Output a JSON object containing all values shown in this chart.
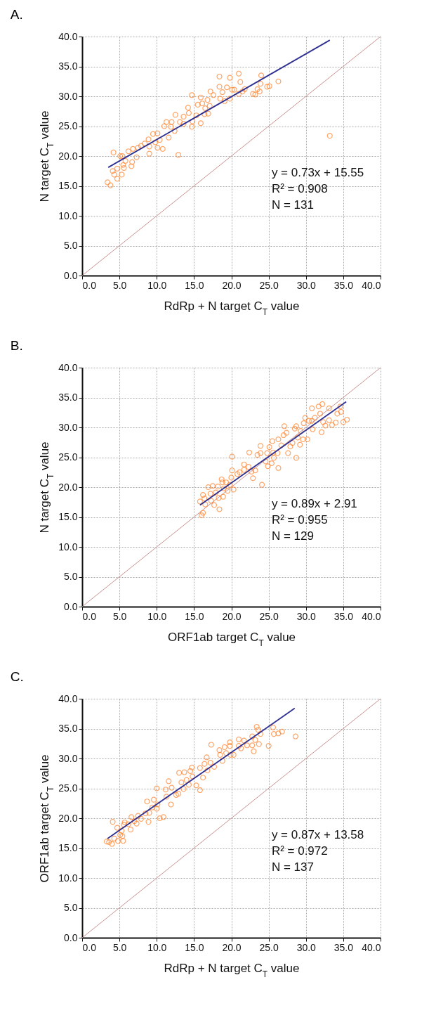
{
  "chart_data": [
    {
      "type": "scatter",
      "title": "A.",
      "xlabel": "RdRp + N target C$_{T}$ value",
      "ylabel": "N target C$_{T}$ value",
      "xlim": [
        0,
        40
      ],
      "ylim": [
        0,
        40
      ],
      "xticks": [
        {
          "value": 0,
          "label": "0.0"
        },
        {
          "value": 5,
          "label": "5.0"
        },
        {
          "value": 10,
          "label": "10.0"
        },
        {
          "value": 15,
          "label": "15.0"
        },
        {
          "value": 20,
          "label": "20.0"
        },
        {
          "value": 25,
          "label": "25.0"
        },
        {
          "value": 30,
          "label": "30.0"
        },
        {
          "value": 35,
          "label": "35.0"
        },
        {
          "value": 40,
          "label": "40.0"
        }
      ],
      "yticks": [
        {
          "value": 0,
          "label": "0.0"
        },
        {
          "value": 5,
          "label": "5.0"
        },
        {
          "value": 10,
          "label": "10.0"
        },
        {
          "value": 15,
          "label": "15.0"
        },
        {
          "value": 20,
          "label": "20.0"
        },
        {
          "value": 25,
          "label": "25.0"
        },
        {
          "value": 30,
          "label": "30.0"
        },
        {
          "value": 35,
          "label": "35.0"
        },
        {
          "value": 40,
          "label": "40.0"
        }
      ],
      "grid": true,
      "annotations": [
        "y = 0.73x + 15.55",
        "R² = 0.908",
        "N = 131"
      ],
      "series": [
        {
          "type": "line",
          "color": "#c89090",
          "x": [
            0,
            40
          ],
          "values": [
            0,
            40
          ]
        },
        {
          "type": "scatter",
          "color": "#ff7f27",
          "marker": "circle",
          "x": [
            3.4,
            3.8,
            4.2,
            4.1,
            4.3,
            4.7,
            4.7,
            5.3,
            5.1,
            5.4,
            5.5,
            5.6,
            5.8,
            6.2,
            6.6,
            6.7,
            6.8,
            7.3,
            7.5,
            7.9,
            8.4,
            8.9,
            9.0,
            9.0,
            9.5,
            9.8,
            10.1,
            10.1,
            10.4,
            10.8,
            11.0,
            11.3,
            11.6,
            11.9,
            12.0,
            12.4,
            12.5,
            12.9,
            13.1,
            13.6,
            13.6,
            14.2,
            14.3,
            14.7,
            14.7,
            14.8,
            15.3,
            15.5,
            15.9,
            15.9,
            16.1,
            16.4,
            16.5,
            16.8,
            16.9,
            17.1,
            17.2,
            17.6,
            18.4,
            18.4,
            18.5,
            18.8,
            19.1,
            19.4,
            19.8,
            19.8,
            20.1,
            20.4,
            21.0,
            21.0,
            21.2,
            21.5,
            21.8,
            22.9,
            23.2,
            23.5,
            23.8,
            23.9,
            24.0,
            24.8,
            25.1,
            26.3,
            33.2
          ],
          "values": [
            15.6,
            15.1,
            20.6,
            17.5,
            16.9,
            16.2,
            17.9,
            16.9,
            20.0,
            20.0,
            18.5,
            18.0,
            19.2,
            20.8,
            18.3,
            19.0,
            21.2,
            19.8,
            21.4,
            21.7,
            22.1,
            22.8,
            20.4,
            21.6,
            23.7,
            22.3,
            23.8,
            21.4,
            22.7,
            21.2,
            25.0,
            25.7,
            23.1,
            24.9,
            25.7,
            24.2,
            26.9,
            20.2,
            25.7,
            25.4,
            26.6,
            28.1,
            27.2,
            30.2,
            24.9,
            25.8,
            26.8,
            28.6,
            29.8,
            25.5,
            28.8,
            27.0,
            28.0,
            29.4,
            27.1,
            28.4,
            30.8,
            30.2,
            33.3,
            31.6,
            29.6,
            30.7,
            29.2,
            31.5,
            29.6,
            33.1,
            31.1,
            31.1,
            33.8,
            30.4,
            32.4,
            30.8,
            31.2,
            30.4,
            30.3,
            31.2,
            30.8,
            32.1,
            33.5,
            31.6,
            31.7,
            32.5,
            23.4
          ]
        },
        {
          "type": "line",
          "color": "#2e3192",
          "x": [
            3.5,
            33.2
          ],
          "values": [
            18.1,
            39.4
          ]
        }
      ]
    },
    {
      "type": "scatter",
      "title": "B.",
      "xlabel": "ORF1ab target C$_{T}$ value",
      "ylabel": "N target C$_{T}$ value",
      "xlim": [
        0,
        40
      ],
      "ylim": [
        0,
        40
      ],
      "xticks": [
        {
          "value": 0,
          "label": "0.0"
        },
        {
          "value": 5,
          "label": "5.0"
        },
        {
          "value": 10,
          "label": "10.0"
        },
        {
          "value": 15,
          "label": "15.0"
        },
        {
          "value": 20,
          "label": "20.0"
        },
        {
          "value": 25,
          "label": "25.0"
        },
        {
          "value": 30,
          "label": "30.0"
        },
        {
          "value": 35,
          "label": "35.0"
        },
        {
          "value": 40,
          "label": "40.0"
        }
      ],
      "yticks": [
        {
          "value": 0,
          "label": "0.0"
        },
        {
          "value": 5,
          "label": "5.0"
        },
        {
          "value": 10,
          "label": "10.0"
        },
        {
          "value": 15,
          "label": "15.0"
        },
        {
          "value": 20,
          "label": "20.0"
        },
        {
          "value": 25,
          "label": "25.0"
        },
        {
          "value": 30,
          "label": "30.0"
        },
        {
          "value": 35,
          "label": "35.0"
        },
        {
          "value": 40,
          "label": "40.0"
        }
      ],
      "grid": true,
      "annotations": [
        "y = 0.89x + 2.91",
        "R² = 0.955",
        "N = 129"
      ],
      "series": [
        {
          "type": "line",
          "color": "#c89090",
          "x": [
            0,
            40
          ],
          "values": [
            0,
            40
          ]
        },
        {
          "type": "scatter",
          "color": "#ff7f27",
          "marker": "circle",
          "x": [
            15.8,
            16.0,
            16.2,
            16.2,
            16.4,
            16.5,
            16.9,
            17.2,
            17.3,
            17.5,
            17.7,
            17.9,
            18.2,
            18.3,
            18.4,
            18.7,
            18.8,
            18.9,
            19.0,
            19.3,
            19.5,
            19.8,
            20.0,
            20.1,
            20.1,
            20.3,
            20.8,
            21.1,
            21.7,
            21.7,
            22.3,
            22.4,
            22.7,
            22.9,
            23.2,
            23.5,
            23.9,
            23.9,
            24.1,
            24.6,
            24.8,
            24.9,
            25.1,
            25.4,
            25.5,
            25.6,
            25.7,
            26.2,
            26.3,
            26.3,
            26.7,
            27.0,
            27.1,
            27.4,
            27.6,
            27.9,
            28.2,
            28.5,
            28.7,
            28.7,
            28.9,
            29.2,
            29.3,
            29.6,
            29.7,
            29.9,
            30.2,
            30.4,
            30.8,
            30.9,
            30.8,
            31.2,
            31.7,
            31.9,
            32.1,
            32.2,
            32.3,
            32.6,
            33.1,
            33.1,
            33.5,
            34.0,
            34.2,
            34.6,
            34.7,
            35.0,
            35.5
          ],
          "values": [
            17.6,
            15.3,
            15.7,
            18.7,
            18.1,
            17.1,
            20.0,
            18.9,
            17.7,
            20.2,
            17.0,
            19.1,
            20.1,
            18.2,
            16.3,
            21.3,
            20.8,
            18.4,
            19.8,
            20.8,
            19.4,
            20.4,
            21.6,
            22.8,
            25.1,
            19.6,
            22.2,
            22.5,
            23.8,
            22.9,
            23.4,
            25.8,
            22.6,
            21.5,
            22.8,
            25.4,
            26.9,
            25.7,
            20.4,
            24.3,
            25.7,
            23.5,
            26.7,
            24.0,
            27.7,
            25.8,
            24.9,
            25.7,
            23.2,
            28.0,
            27.0,
            28.7,
            30.2,
            29.1,
            25.7,
            26.8,
            27.4,
            29.8,
            24.9,
            30.2,
            28.3,
            27.1,
            29.4,
            28.0,
            30.7,
            31.6,
            28.0,
            31.1,
            31.1,
            29.7,
            33.2,
            31.6,
            33.5,
            32.3,
            29.2,
            33.9,
            30.9,
            30.3,
            33.2,
            31.2,
            30.4,
            30.8,
            32.3,
            33.5,
            32.6,
            30.9,
            31.3
          ]
        },
        {
          "type": "line",
          "color": "#2e3192",
          "x": [
            15.8,
            35.4
          ],
          "values": [
            17.0,
            34.3
          ]
        }
      ]
    },
    {
      "type": "scatter",
      "title": "C.",
      "xlabel": "RdRp + N target C$_{T}$ value",
      "ylabel": "ORF1ab target C$_{T}$ value",
      "xlim": [
        0,
        40
      ],
      "ylim": [
        0,
        40
      ],
      "xticks": [
        {
          "value": 0,
          "label": "0.0"
        },
        {
          "value": 5,
          "label": "5.0"
        },
        {
          "value": 10,
          "label": "10.0"
        },
        {
          "value": 15,
          "label": "15.0"
        },
        {
          "value": 20,
          "label": "20.0"
        },
        {
          "value": 25,
          "label": "25.0"
        },
        {
          "value": 30,
          "label": "30.0"
        },
        {
          "value": 35,
          "label": "35.0"
        },
        {
          "value": 40,
          "label": "40.0"
        }
      ],
      "yticks": [
        {
          "value": 0,
          "label": "0.0"
        },
        {
          "value": 5,
          "label": "5.0"
        },
        {
          "value": 10,
          "label": "10.0"
        },
        {
          "value": 15,
          "label": "15.0"
        },
        {
          "value": 20,
          "label": "20.0"
        },
        {
          "value": 25,
          "label": "25.0"
        },
        {
          "value": 30,
          "label": "30.0"
        },
        {
          "value": 35,
          "label": "35.0"
        },
        {
          "value": 40,
          "label": "40.0"
        }
      ],
      "grid": true,
      "annotations": [
        "y = 0.87x + 13.58",
        "R² = 0.972",
        "N = 137"
      ],
      "series": [
        {
          "type": "line",
          "color": "#c89090",
          "x": [
            0,
            40
          ],
          "values": [
            0,
            40
          ]
        },
        {
          "type": "scatter",
          "color": "#ff7f27",
          "marker": "circle",
          "x": [
            3.3,
            3.6,
            4.0,
            4.1,
            4.3,
            4.7,
            4.8,
            5.1,
            5.3,
            5.4,
            5.5,
            5.6,
            5.7,
            6.2,
            6.5,
            6.6,
            7.0,
            7.3,
            7.5,
            7.9,
            8.5,
            8.7,
            8.9,
            9.0,
            9.4,
            9.6,
            10.0,
            10.0,
            10.1,
            10.4,
            10.9,
            11.2,
            11.3,
            11.6,
            11.9,
            12.0,
            12.6,
            12.9,
            13.0,
            13.3,
            13.6,
            13.7,
            14.0,
            14.3,
            14.5,
            14.7,
            14.8,
            15.3,
            15.8,
            15.8,
            16.2,
            16.4,
            16.7,
            16.8,
            17.2,
            17.3,
            17.7,
            18.4,
            18.5,
            18.8,
            19.1,
            19.3,
            19.8,
            19.8,
            19.9,
            20.3,
            21.0,
            21.0,
            21.3,
            21.7,
            22.1,
            22.8,
            22.8,
            23.0,
            23.2,
            23.4,
            23.6,
            23.7,
            23.9,
            25.0,
            25.6,
            25.7,
            26.3,
            26.8,
            28.6
          ],
          "values": [
            16.1,
            16.0,
            15.7,
            19.4,
            16.6,
            18.4,
            16.2,
            17.2,
            17.9,
            17.0,
            16.2,
            18.9,
            19.3,
            19.0,
            18.1,
            20.2,
            19.5,
            19.1,
            20.4,
            19.9,
            20.8,
            22.8,
            19.4,
            20.9,
            21.8,
            23.1,
            21.6,
            25.0,
            22.3,
            20.0,
            20.2,
            24.8,
            23.6,
            26.2,
            22.3,
            25.1,
            23.9,
            24.1,
            27.6,
            26.0,
            24.9,
            27.7,
            26.4,
            25.6,
            27.9,
            28.5,
            27.0,
            25.5,
            24.7,
            28.4,
            26.8,
            29.1,
            30.2,
            28.0,
            29.3,
            32.3,
            28.6,
            31.4,
            30.6,
            29.6,
            31.9,
            30.9,
            32.7,
            32.1,
            30.6,
            30.6,
            33.2,
            32.1,
            31.7,
            33.0,
            32.2,
            33.7,
            32.2,
            31.2,
            33.1,
            35.3,
            34.8,
            32.4,
            34.1,
            32.1,
            35.2,
            34.1,
            34.2,
            34.5,
            33.7
          ]
        },
        {
          "type": "line",
          "color": "#2e3192",
          "x": [
            3.4,
            28.5
          ],
          "values": [
            16.6,
            38.4
          ]
        }
      ]
    }
  ]
}
